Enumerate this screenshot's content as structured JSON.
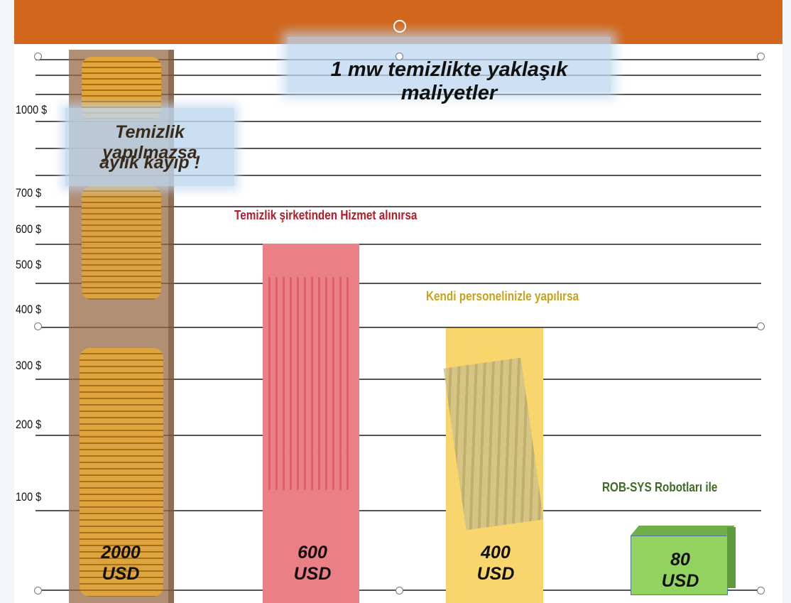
{
  "title": "1 mw temizlikte yaklaşık maliyetler",
  "callout": {
    "line1": "Temizlik yapılmazsa",
    "line2": "aylık kayıp !"
  },
  "axis_labels": [
    "1000 $",
    "700 $",
    "600 $",
    "500 $",
    "400 $",
    "300 $",
    "200 $",
    "100 $"
  ],
  "captions": [
    "Temizlik şirketinden Hizmet alınırsa",
    "Kendi personelinizle yapılırsa",
    "ROB-SYS Robotları ile"
  ],
  "bars": [
    {
      "amount": "2000",
      "unit": "USD"
    },
    {
      "amount": "600",
      "unit": "USD"
    },
    {
      "amount": "400",
      "unit": "USD"
    },
    {
      "amount": "80",
      "unit": "USD"
    }
  ]
}
